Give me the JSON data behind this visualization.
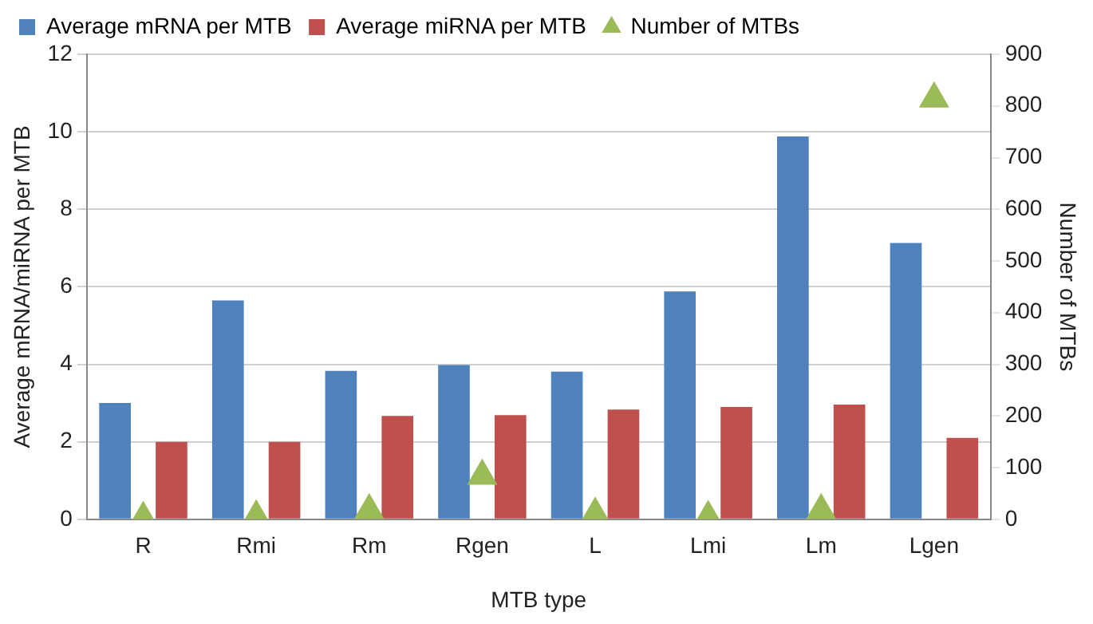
{
  "chart_data": {
    "type": "bar",
    "xlabel": "MTB type",
    "ylabel": "Average mRNA/miRNA per MTB",
    "y2label": "Number of MTBs",
    "categories": [
      "R",
      "Rmi",
      "Rm",
      "Rgen",
      "L",
      "Lmi",
      "Lm",
      "Lgen"
    ],
    "series": [
      {
        "name": "Average mRNA per MTB",
        "color": "#4f81bd",
        "values": [
          3.0,
          5.65,
          3.83,
          3.98,
          3.81,
          5.88,
          9.88,
          7.13
        ]
      },
      {
        "name": "Average miRNA per MTB",
        "color": "#c0504d",
        "values": [
          2.0,
          2.0,
          2.67,
          2.69,
          2.83,
          2.9,
          2.96,
          2.1
        ]
      },
      {
        "name": "Number of MTBs",
        "type": "scatter",
        "axis": "y2",
        "marker": "triangle",
        "color": "#9bbb59",
        "values": [
          2,
          5,
          17,
          84,
          10,
          4,
          17,
          814
        ]
      }
    ],
    "ylim": [
      0,
      12
    ],
    "yticks": [
      0,
      2,
      4,
      6,
      8,
      10,
      12
    ],
    "y2lim": [
      0,
      900
    ],
    "y2ticks": [
      0,
      100,
      200,
      300,
      400,
      500,
      600,
      700,
      800,
      900
    ],
    "grid": "y",
    "legend": "top"
  }
}
